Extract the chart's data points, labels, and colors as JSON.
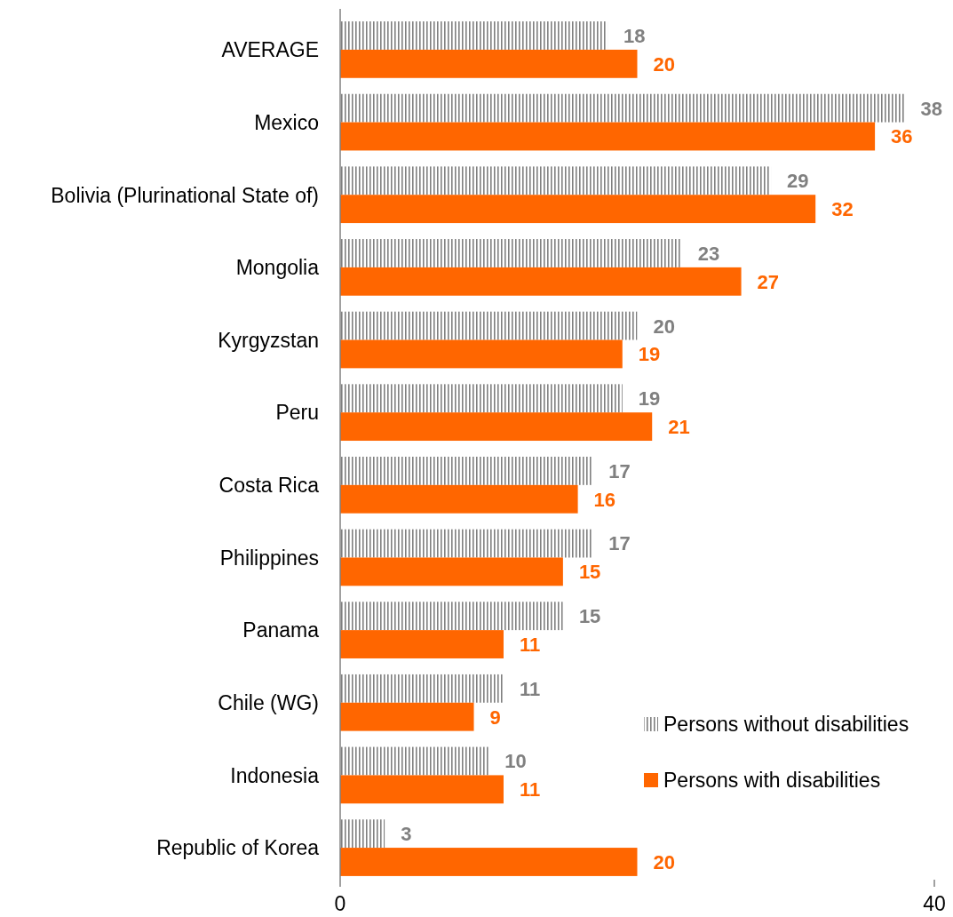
{
  "chart_data": {
    "type": "bar",
    "orientation": "horizontal",
    "categories": [
      "AVERAGE",
      "Mexico",
      "Bolivia (Plurinational State of)",
      "Mongolia",
      "Kyrgyzstan",
      "Peru",
      "Costa Rica",
      "Philippines",
      "Panama",
      "Chile (WG)",
      "Indonesia",
      "Republic of Korea"
    ],
    "series": [
      {
        "name": "Persons without disabilities",
        "color": "#808080",
        "values": [
          18,
          38,
          29,
          23,
          20,
          19,
          17,
          17,
          15,
          11,
          10,
          3
        ]
      },
      {
        "name": "Persons with disabilities",
        "color": "#ff6600",
        "values": [
          20,
          36,
          32,
          27,
          19,
          21,
          16,
          15,
          11,
          9,
          11,
          20
        ]
      }
    ],
    "xlim": [
      0,
      40
    ],
    "xticks": [
      0,
      40
    ],
    "data_labels": true,
    "legend": "bottom right",
    "grid": false
  }
}
